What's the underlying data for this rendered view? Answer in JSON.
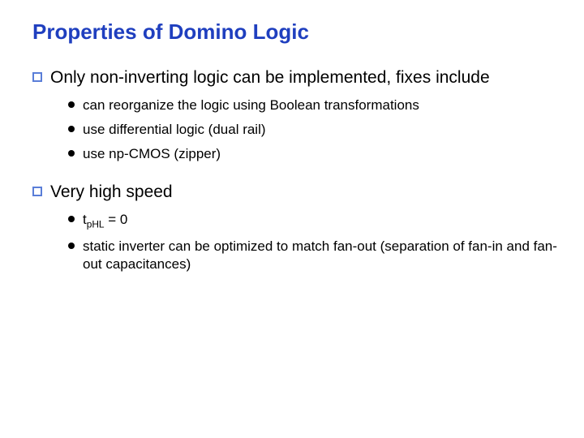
{
  "colors": {
    "title": "#1f3fbf",
    "level1_bullet": "#5a7ed8",
    "body_text": "#000000",
    "background": "#ffffff"
  },
  "title": "Properties of Domino Logic",
  "sections": [
    {
      "heading": "Only non-inverting logic can be implemented, fixes include",
      "items": [
        "can reorganize the logic using Boolean transformations",
        "use differential logic (dual rail)",
        "use np-CMOS (zipper)"
      ]
    },
    {
      "heading": "Very high speed",
      "items": [
        {
          "prefix": "t",
          "sub": "pHL",
          "suffix": " = 0"
        },
        "static inverter can be optimized to match fan-out (separation of fan-in and fan-out capacitances)"
      ]
    }
  ]
}
